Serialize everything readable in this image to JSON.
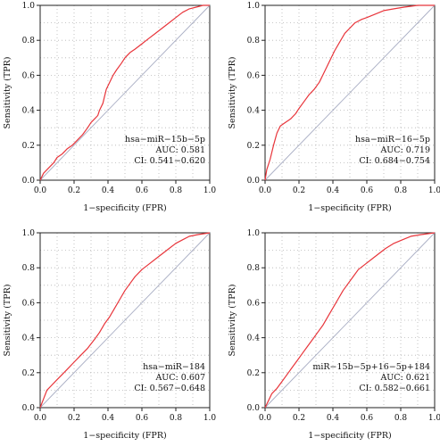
{
  "chart_data": [
    {
      "type": "line",
      "xlabel": "1−specificity (FPR)",
      "ylabel": "Sensitivity (TPR)",
      "xlim": [
        0,
        1
      ],
      "ylim": [
        0,
        1
      ],
      "x_ticks": [
        "0.0",
        "0.2",
        "0.4",
        "0.6",
        "0.8",
        "1.0"
      ],
      "y_ticks": [
        "0.0",
        "0.2",
        "0.4",
        "0.6",
        "0.8",
        "1.0"
      ],
      "grid": true,
      "reference_line": [
        [
          0,
          0
        ],
        [
          1,
          1
        ]
      ],
      "annotation": [
        "hsa−miR−15b−5p",
        "AUC: 0.581",
        "CI: 0.541−0.620"
      ],
      "series_color": "#e8353b",
      "points": [
        [
          0,
          0
        ],
        [
          0.02,
          0.04
        ],
        [
          0.05,
          0.07
        ],
        [
          0.08,
          0.1
        ],
        [
          0.1,
          0.13
        ],
        [
          0.13,
          0.15
        ],
        [
          0.16,
          0.18
        ],
        [
          0.19,
          0.2
        ],
        [
          0.22,
          0.23
        ],
        [
          0.25,
          0.26
        ],
        [
          0.28,
          0.3
        ],
        [
          0.3,
          0.33
        ],
        [
          0.32,
          0.35
        ],
        [
          0.34,
          0.37
        ],
        [
          0.35,
          0.4
        ],
        [
          0.37,
          0.44
        ],
        [
          0.38,
          0.48
        ],
        [
          0.39,
          0.52
        ],
        [
          0.41,
          0.56
        ],
        [
          0.43,
          0.6
        ],
        [
          0.45,
          0.63
        ],
        [
          0.48,
          0.67
        ],
        [
          0.5,
          0.7
        ],
        [
          0.53,
          0.73
        ],
        [
          0.56,
          0.75
        ],
        [
          0.6,
          0.78
        ],
        [
          0.64,
          0.81
        ],
        [
          0.68,
          0.84
        ],
        [
          0.72,
          0.87
        ],
        [
          0.76,
          0.9
        ],
        [
          0.8,
          0.93
        ],
        [
          0.84,
          0.96
        ],
        [
          0.88,
          0.98
        ],
        [
          0.92,
          0.99
        ],
        [
          0.96,
          1
        ],
        [
          1,
          1
        ]
      ]
    },
    {
      "type": "line",
      "xlabel": "1−specificity (FPR)",
      "ylabel": "Sensitivity (TPR)",
      "xlim": [
        0,
        1
      ],
      "ylim": [
        0,
        1
      ],
      "x_ticks": [
        "0.0",
        "0.2",
        "0.4",
        "0.6",
        "0.8",
        "1.0"
      ],
      "y_ticks": [
        "0.0",
        "0.2",
        "0.4",
        "0.6",
        "0.8",
        "1.0"
      ],
      "grid": true,
      "reference_line": [
        [
          0,
          0
        ],
        [
          1,
          1
        ]
      ],
      "annotation": [
        "hsa−miR−16−5p",
        "AUC: 0.719",
        "CI: 0.684−0.754"
      ],
      "series_color": "#e8353b",
      "points": [
        [
          0,
          0
        ],
        [
          0.01,
          0.06
        ],
        [
          0.03,
          0.12
        ],
        [
          0.05,
          0.2
        ],
        [
          0.07,
          0.27
        ],
        [
          0.09,
          0.31
        ],
        [
          0.12,
          0.33
        ],
        [
          0.15,
          0.35
        ],
        [
          0.18,
          0.38
        ],
        [
          0.2,
          0.41
        ],
        [
          0.23,
          0.45
        ],
        [
          0.26,
          0.49
        ],
        [
          0.29,
          0.52
        ],
        [
          0.32,
          0.56
        ],
        [
          0.35,
          0.62
        ],
        [
          0.38,
          0.68
        ],
        [
          0.41,
          0.74
        ],
        [
          0.44,
          0.79
        ],
        [
          0.47,
          0.84
        ],
        [
          0.5,
          0.87
        ],
        [
          0.53,
          0.9
        ],
        [
          0.57,
          0.92
        ],
        [
          0.6,
          0.93
        ],
        [
          0.65,
          0.95
        ],
        [
          0.7,
          0.97
        ],
        [
          0.76,
          0.98
        ],
        [
          0.82,
          0.99
        ],
        [
          0.9,
          1
        ],
        [
          1,
          1
        ]
      ]
    },
    {
      "type": "line",
      "xlabel": "1−specificity (FPR)",
      "ylabel": "Sensitivity (TPR)",
      "xlim": [
        0,
        1
      ],
      "ylim": [
        0,
        1
      ],
      "x_ticks": [
        "0.0",
        "0.2",
        "0.4",
        "0.6",
        "0.8",
        "1.0"
      ],
      "y_ticks": [
        "0.0",
        "0.2",
        "0.4",
        "0.6",
        "0.8",
        "1.0"
      ],
      "grid": true,
      "reference_line": [
        [
          0,
          0
        ],
        [
          1,
          1
        ]
      ],
      "annotation": [
        "hsa−miR−184",
        "AUC: 0.607",
        "CI: 0.567−0.648"
      ],
      "series_color": "#e8353b",
      "points": [
        [
          0,
          0
        ],
        [
          0.02,
          0.05
        ],
        [
          0.04,
          0.1
        ],
        [
          0.07,
          0.13
        ],
        [
          0.1,
          0.16
        ],
        [
          0.13,
          0.19
        ],
        [
          0.16,
          0.22
        ],
        [
          0.2,
          0.26
        ],
        [
          0.24,
          0.3
        ],
        [
          0.28,
          0.34
        ],
        [
          0.32,
          0.39
        ],
        [
          0.35,
          0.43
        ],
        [
          0.38,
          0.48
        ],
        [
          0.41,
          0.52
        ],
        [
          0.44,
          0.57
        ],
        [
          0.47,
          0.62
        ],
        [
          0.5,
          0.67
        ],
        [
          0.53,
          0.71
        ],
        [
          0.56,
          0.75
        ],
        [
          0.6,
          0.79
        ],
        [
          0.64,
          0.82
        ],
        [
          0.68,
          0.85
        ],
        [
          0.72,
          0.88
        ],
        [
          0.76,
          0.91
        ],
        [
          0.8,
          0.94
        ],
        [
          0.84,
          0.96
        ],
        [
          0.88,
          0.98
        ],
        [
          0.93,
          0.99
        ],
        [
          1,
          1
        ]
      ]
    },
    {
      "type": "line",
      "xlabel": "1−specificity (FPR)",
      "ylabel": "Sensitivity (TPR)",
      "xlim": [
        0,
        1
      ],
      "ylim": [
        0,
        1
      ],
      "x_ticks": [
        "0.0",
        "0.2",
        "0.4",
        "0.6",
        "0.8",
        "1.0"
      ],
      "y_ticks": [
        "0.0",
        "0.2",
        "0.4",
        "0.6",
        "0.8",
        "1.0"
      ],
      "grid": true,
      "reference_line": [
        [
          0,
          0
        ],
        [
          1,
          1
        ]
      ],
      "annotation": [
        "miR−15b−5p+16−5p+184",
        "AUC: 0.621",
        "CI: 0.582−0.661"
      ],
      "series_color": "#e8353b",
      "points": [
        [
          0,
          0
        ],
        [
          0.02,
          0.04
        ],
        [
          0.04,
          0.08
        ],
        [
          0.07,
          0.11
        ],
        [
          0.1,
          0.15
        ],
        [
          0.13,
          0.19
        ],
        [
          0.16,
          0.23
        ],
        [
          0.19,
          0.27
        ],
        [
          0.22,
          0.31
        ],
        [
          0.25,
          0.35
        ],
        [
          0.28,
          0.39
        ],
        [
          0.31,
          0.43
        ],
        [
          0.34,
          0.47
        ],
        [
          0.37,
          0.52
        ],
        [
          0.4,
          0.57
        ],
        [
          0.43,
          0.62
        ],
        [
          0.46,
          0.67
        ],
        [
          0.49,
          0.71
        ],
        [
          0.52,
          0.75
        ],
        [
          0.55,
          0.79
        ],
        [
          0.59,
          0.82
        ],
        [
          0.63,
          0.85
        ],
        [
          0.67,
          0.88
        ],
        [
          0.71,
          0.91
        ],
        [
          0.76,
          0.94
        ],
        [
          0.81,
          0.96
        ],
        [
          0.86,
          0.98
        ],
        [
          0.92,
          0.99
        ],
        [
          1,
          1
        ]
      ]
    }
  ]
}
